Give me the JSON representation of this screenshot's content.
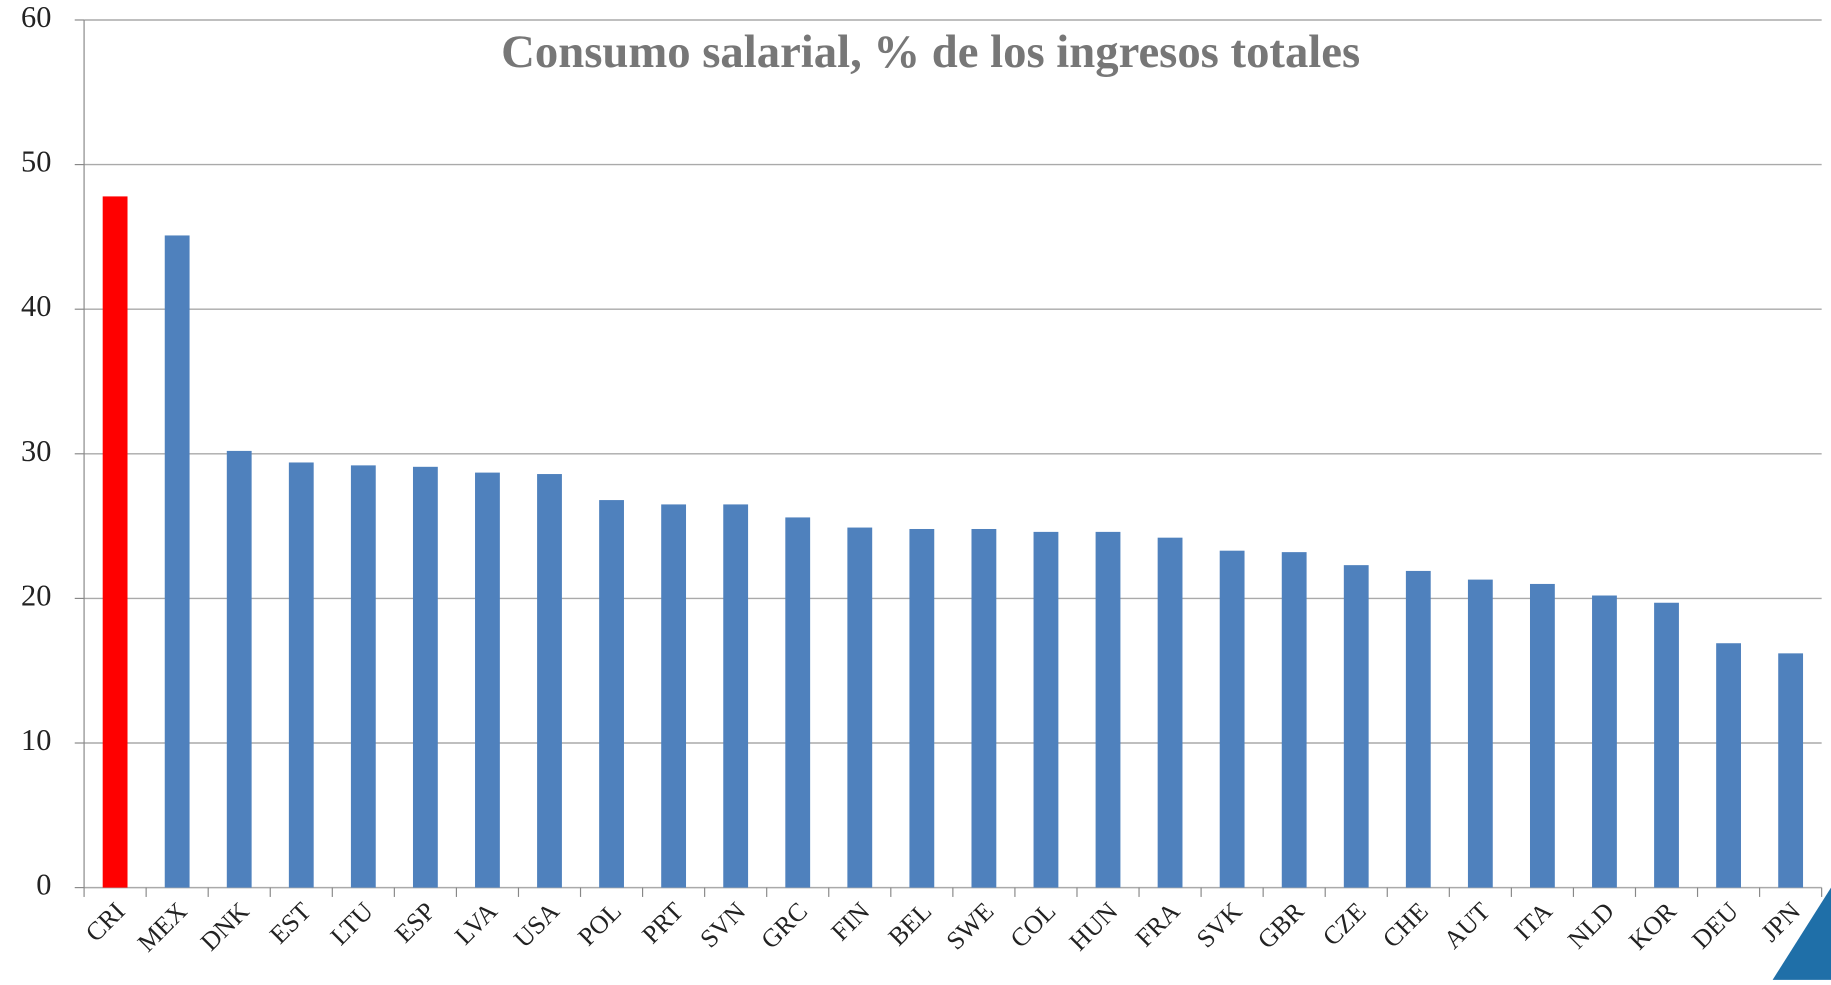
{
  "chart_data": {
    "type": "bar",
    "title": "Consumo salarial, % de los ingresos totales",
    "categories": [
      "CRI",
      "MEX",
      "DNK",
      "EST",
      "LTU",
      "ESP",
      "LVA",
      "USA",
      "POL",
      "PRT",
      "SVN",
      "GRC",
      "FIN",
      "BEL",
      "SWE",
      "COL",
      "HUN",
      "FRA",
      "SVK",
      "GBR",
      "CZE",
      "CHE",
      "AUT",
      "ITA",
      "NLD",
      "KOR",
      "DEU",
      "JPN"
    ],
    "values": [
      47.8,
      45.1,
      30.2,
      29.4,
      29.2,
      29.1,
      28.7,
      28.6,
      26.8,
      26.5,
      26.5,
      25.6,
      24.9,
      24.8,
      24.8,
      24.6,
      24.6,
      24.2,
      23.3,
      23.2,
      22.3,
      21.9,
      21.3,
      21.0,
      20.2,
      19.7,
      16.9,
      16.2
    ],
    "colors": [
      "#ff0000",
      "#4f81bd",
      "#4f81bd",
      "#4f81bd",
      "#4f81bd",
      "#4f81bd",
      "#4f81bd",
      "#4f81bd",
      "#4f81bd",
      "#4f81bd",
      "#4f81bd",
      "#4f81bd",
      "#4f81bd",
      "#4f81bd",
      "#4f81bd",
      "#4f81bd",
      "#4f81bd",
      "#4f81bd",
      "#4f81bd",
      "#4f81bd",
      "#4f81bd",
      "#4f81bd",
      "#4f81bd",
      "#4f81bd",
      "#4f81bd",
      "#4f81bd",
      "#4f81bd",
      "#4f81bd"
    ],
    "ylim": [
      0,
      60
    ],
    "yticks": [
      0,
      10,
      20,
      30,
      40,
      50,
      60
    ],
    "grid": true
  }
}
